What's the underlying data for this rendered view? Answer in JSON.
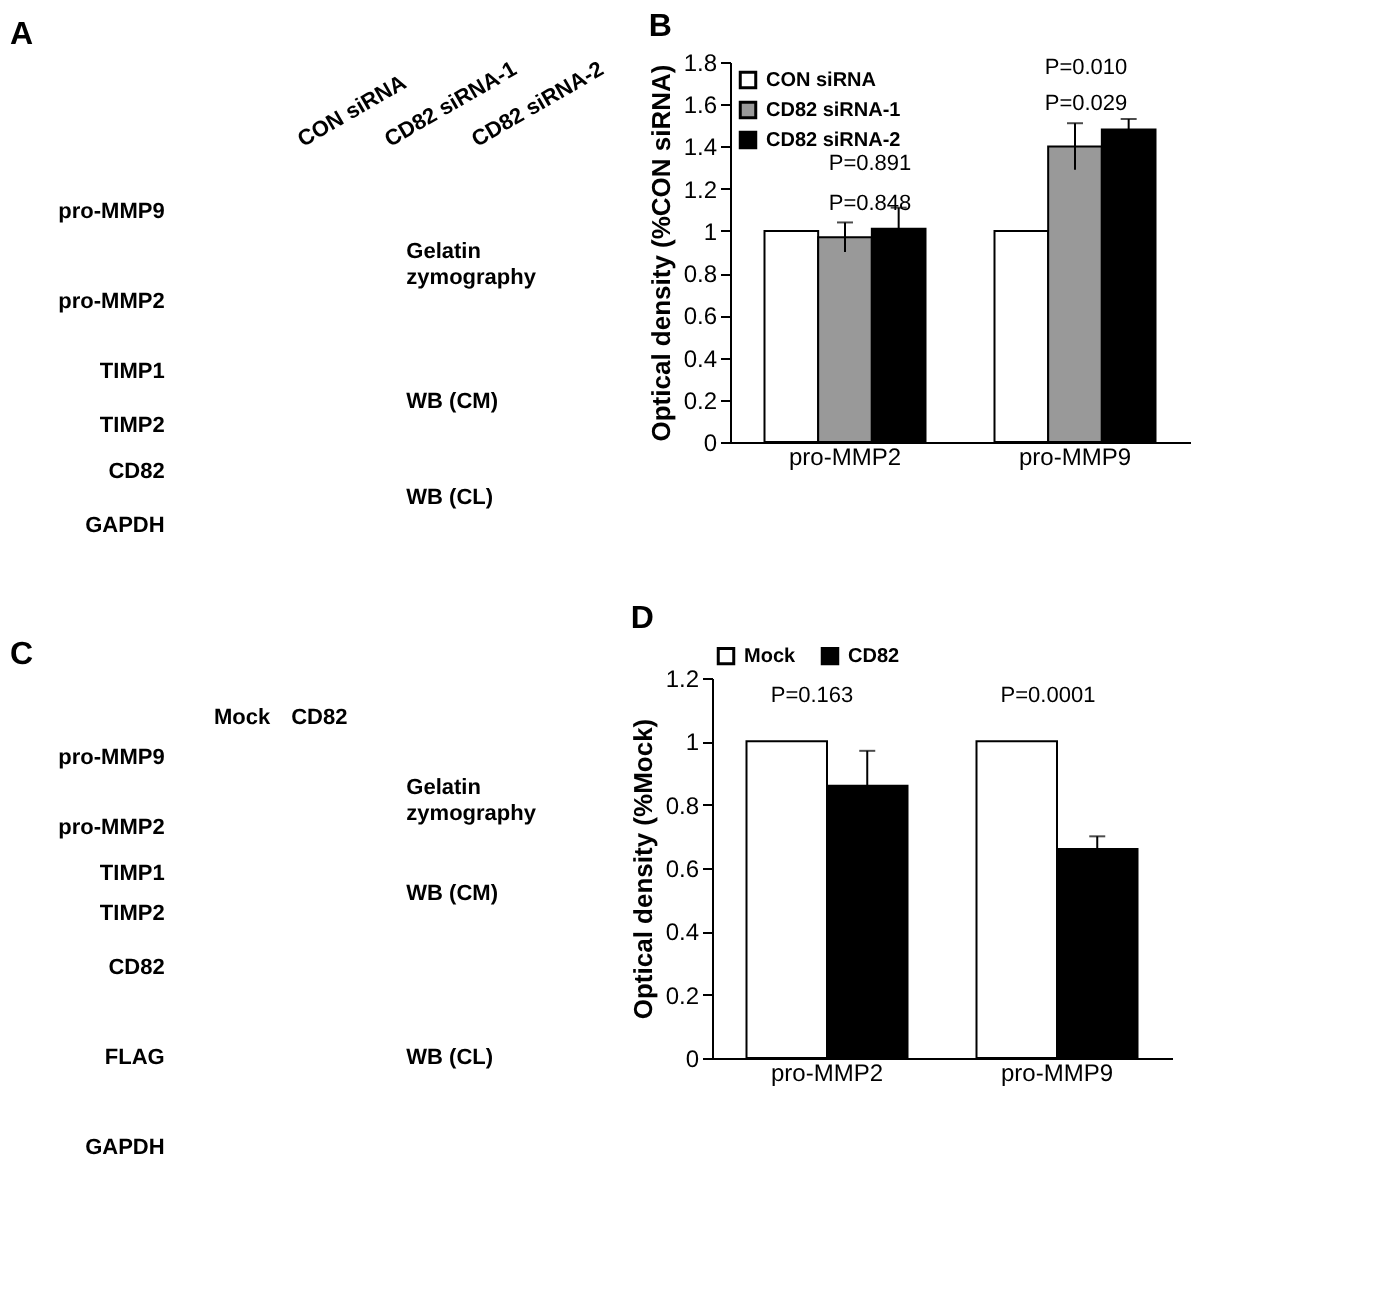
{
  "chart_data": [
    {
      "type": "other",
      "title": "A",
      "annotations": [
        "CON siRNA",
        "CD82 siRNA-1",
        "CD82 siRNA-2",
        "pro-MMP9",
        "pro-MMP2",
        "Gelatin\nzymography",
        "TIMP1",
        "TIMP2",
        "WB (CM)",
        "CD82",
        "GAPDH",
        "WB (CL)"
      ]
    },
    {
      "type": "bar",
      "title": "B",
      "ylabel": "Optical density (%CON siRNA)",
      "categories": [
        "pro-MMP2",
        "pro-MMP9"
      ],
      "series": [
        {
          "name": "CON siRNA",
          "color": "#ffffff",
          "values": [
            1,
            1
          ]
        },
        {
          "name": "CD82 siRNA-1",
          "color": "#999999",
          "values": [
            0.97,
            1.4
          ],
          "errors": [
            0.07,
            0.11
          ]
        },
        {
          "name": "CD82 siRNA-2",
          "color": "#000000",
          "values": [
            1.01,
            1.48
          ],
          "errors": [
            0.1,
            0.05
          ]
        }
      ],
      "ylim": [
        0,
        1.8
      ],
      "yticks": [
        0,
        {
          "value": 0.2,
          "label": "0.2"
        },
        {
          "value": 0.4,
          "label": "0.4"
        },
        {
          "value": 0.6,
          "label": "0.6"
        },
        {
          "value": 0.8,
          "label": "0.8"
        },
        1,
        {
          "value": 1.2,
          "label": "1.2"
        },
        {
          "value": 1.4,
          "label": "1.4"
        },
        {
          "value": 1.6,
          "label": "1.6"
        },
        {
          "value": 1.8,
          "label": "1.8"
        }
      ],
      "legend": "top left",
      "grid": false,
      "annotations": [
        "P=0.891",
        "P=0.848",
        "P=0.010",
        "P=0.029"
      ]
    },
    {
      "type": "other",
      "title": "C",
      "annotations": [
        "Mock",
        "CD82",
        "pro-MMP9",
        "pro-MMP2",
        "Gelatin\nzymography",
        "TIMP1",
        "TIMP2",
        "WB (CM)",
        "CD82",
        "FLAG",
        "GAPDH",
        "WB (CL)"
      ]
    },
    {
      "type": "bar",
      "title": "D",
      "ylabel": "Optical density (%Mock)",
      "categories": [
        "pro-MMP2",
        "pro-MMP9"
      ],
      "series": [
        {
          "name": "Mock",
          "color": "#ffffff",
          "values": [
            1,
            1
          ]
        },
        {
          "name": "CD82",
          "color": "#000000",
          "values": [
            0.86,
            0.66
          ],
          "errors": [
            0.11,
            0.04
          ]
        }
      ],
      "ylim": [
        0,
        1.2
      ],
      "yticks": [
        0,
        {
          "value": 0.2,
          "label": "0.2"
        },
        {
          "value": 0.4,
          "label": "0.4"
        },
        {
          "value": 0.6,
          "label": "0.6"
        },
        {
          "value": 0.8,
          "label": "0.8"
        },
        1,
        {
          "value": 1.2,
          "label": "1.2"
        }
      ],
      "legend": "top",
      "grid": false,
      "annotations": [
        "P=0.163",
        "P=0.0001"
      ]
    }
  ]
}
